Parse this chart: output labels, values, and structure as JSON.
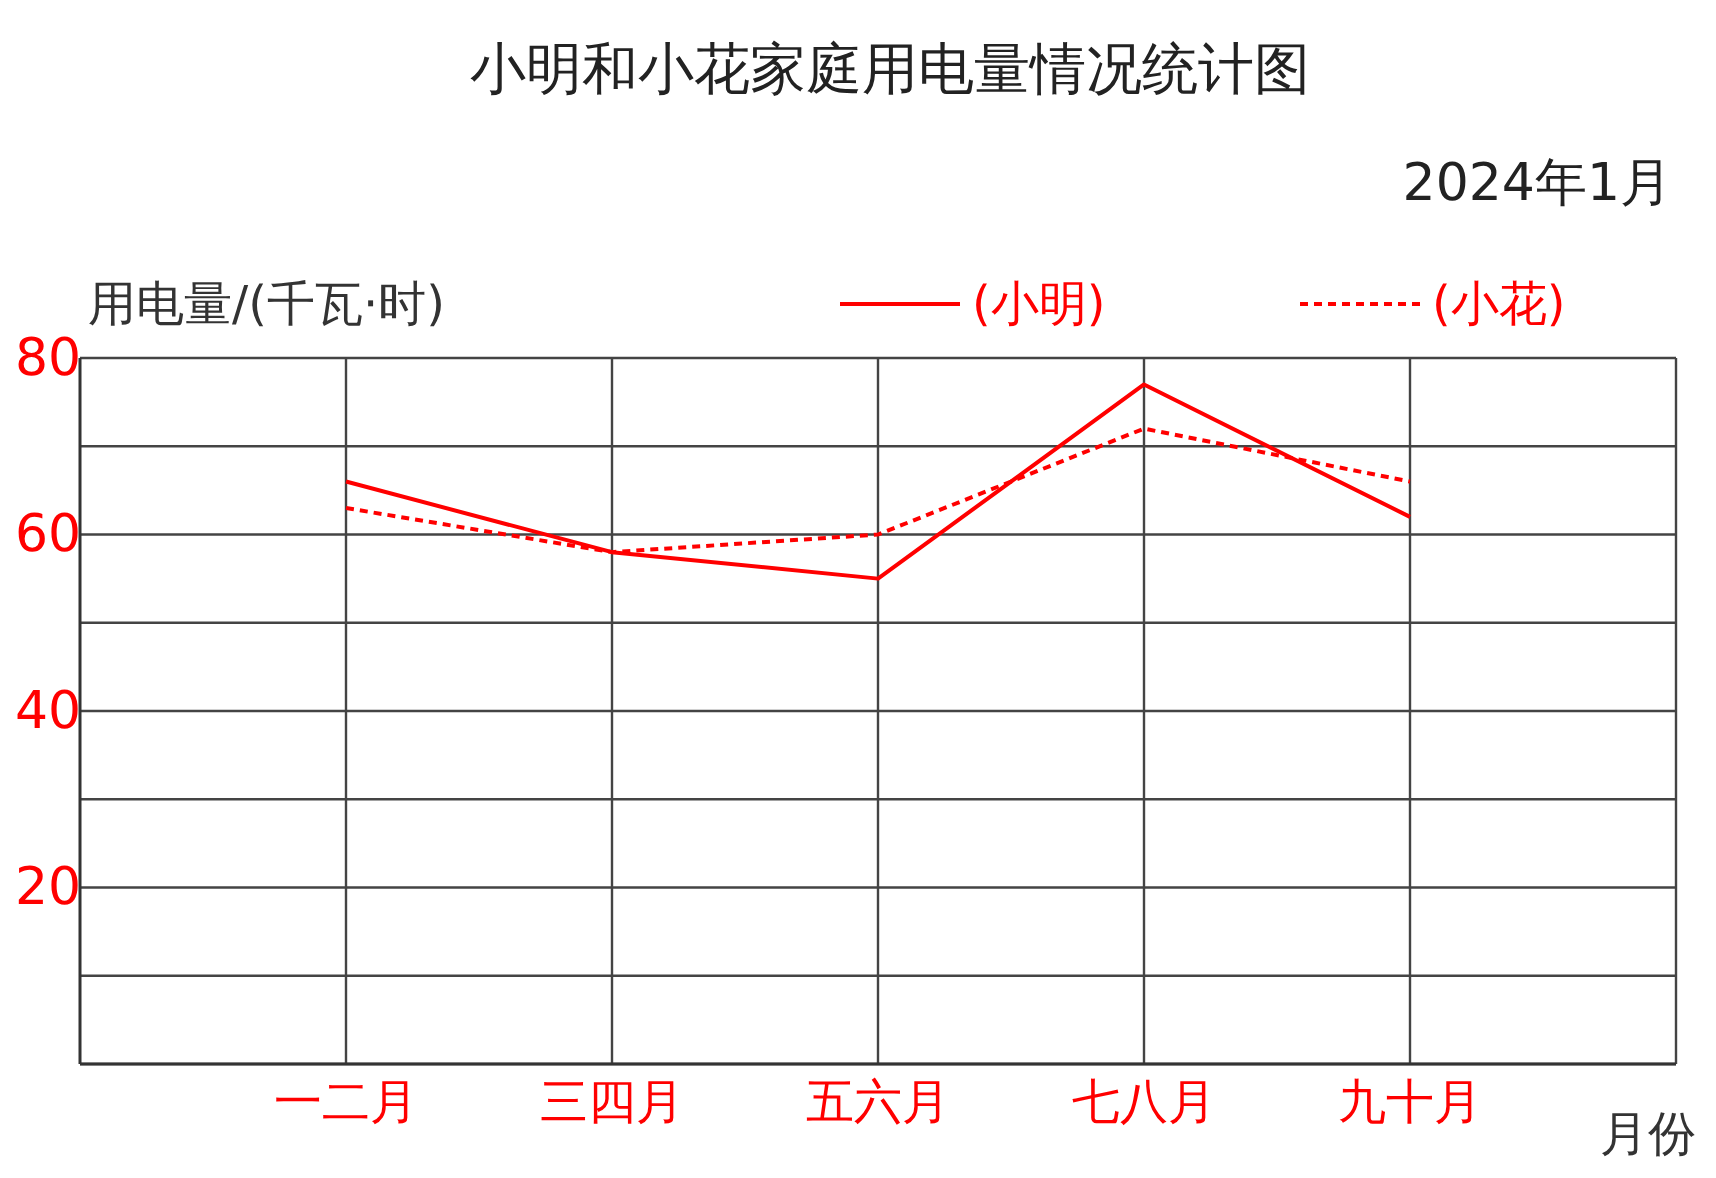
{
  "chart_data": {
    "type": "line",
    "title": "小明和小花家庭用电量情况统计图",
    "subtitle": "2024年1月",
    "ylabel": "用电量/(千瓦·时)",
    "xlabel": "月份",
    "categories": [
      "一二月",
      "三四月",
      "五六月",
      "七八月",
      "九十月"
    ],
    "series": [
      {
        "name": "(小明)",
        "color": "#ff0000",
        "line_style": "solid",
        "values": [
          66,
          58,
          55,
          77,
          62
        ]
      },
      {
        "name": "(小花)",
        "color": "#ff0000",
        "line_style": "dotted",
        "values": [
          63,
          58,
          60,
          72,
          66
        ]
      }
    ],
    "ylim": [
      0,
      80
    ],
    "yticks": [
      {
        "value": 0,
        "label": null
      },
      {
        "value": 10,
        "label": null
      },
      20,
      {
        "value": 30,
        "label": null
      },
      40,
      {
        "value": 50,
        "label": null
      },
      60,
      {
        "value": 70,
        "label": null
      },
      80
    ],
    "grid": true,
    "legend": "top right",
    "marker": "none"
  }
}
